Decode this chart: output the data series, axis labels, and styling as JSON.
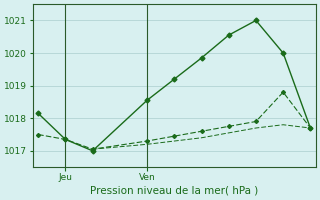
{
  "title": "Pression niveau de la mer( hPa )",
  "background_color": "#d8f0f0",
  "grid_color": "#b8d8d8",
  "line_color": "#1a6b1a",
  "x_tick_labels": [
    "Jeu",
    "Ven"
  ],
  "x_tick_positions": [
    1,
    4
  ],
  "xlim": [
    -0.2,
    10.2
  ],
  "ylim": [
    1016.5,
    1021.5
  ],
  "yticks": [
    1017,
    1018,
    1019,
    1020,
    1021
  ],
  "line1_x": [
    0,
    1,
    2,
    4,
    5,
    6,
    7,
    8,
    9,
    10
  ],
  "line1_y": [
    1018.15,
    1017.35,
    1017.0,
    1018.55,
    1019.2,
    1019.85,
    1020.55,
    1021.0,
    1020.0,
    1017.7
  ],
  "line2_x": [
    0,
    1,
    2,
    4,
    5,
    6,
    7,
    8,
    9,
    10
  ],
  "line2_y": [
    1017.5,
    1017.35,
    1017.05,
    1017.3,
    1017.45,
    1017.6,
    1017.75,
    1017.9,
    1018.8,
    1017.7
  ],
  "line3_x": [
    2,
    4,
    5,
    6,
    7,
    8,
    9,
    10
  ],
  "line3_y": [
    1017.05,
    1017.2,
    1017.3,
    1017.4,
    1017.55,
    1017.7,
    1017.8,
    1017.7
  ]
}
